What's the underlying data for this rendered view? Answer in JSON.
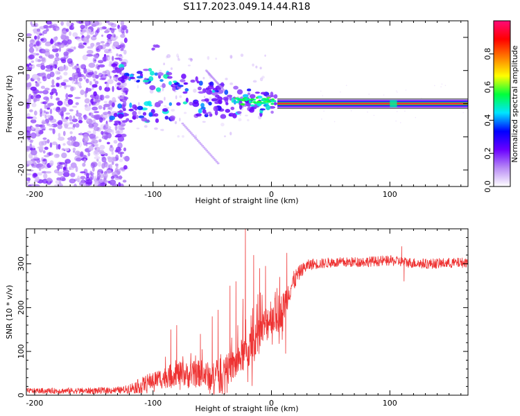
{
  "title": "S117.2023.049.14.44.R18",
  "chart_data": [
    {
      "type": "heatmap",
      "name": "spectrogram",
      "xlabel": "Height of straight line (km)",
      "ylabel": "Frequency (Hz)",
      "xlim": [
        -207,
        166
      ],
      "ylim": [
        -25,
        25
      ],
      "xticks": [
        "-200",
        "-100",
        "0",
        "100"
      ],
      "xtick_values": [
        -200,
        -100,
        0,
        100
      ],
      "yticks": [
        "20",
        "10",
        "0",
        "-10",
        "-20"
      ],
      "ytick_values": [
        20,
        10,
        0,
        -10,
        -20
      ],
      "band": {
        "x_start": 5,
        "x_end": 166,
        "freq_center": 0,
        "freq_halfwidth": 1.2
      },
      "colorbar": {
        "label": "Normalized spectral amplitude",
        "range": [
          0,
          1
        ],
        "ticks": [
          "0.0",
          "0.2",
          "0.4",
          "0.6",
          "0.8"
        ],
        "tick_values": [
          0.0,
          0.2,
          0.4,
          0.6,
          0.8
        ],
        "colors": [
          "#ffffff",
          "#b98cf5",
          "#6a00ff",
          "#0000ff",
          "#00e5ff",
          "#00ff3c",
          "#ffff00",
          "#ff7f00",
          "#ff0000",
          "#ff0a78"
        ]
      }
    },
    {
      "type": "line",
      "name": "snr",
      "xlabel": "Height of straight line (km)",
      "ylabel": "SNR (10 * v/v)",
      "xlim": [
        -207,
        166
      ],
      "ylim": [
        0,
        380
      ],
      "xticks": [
        "-200",
        "-100",
        "0",
        "100"
      ],
      "xtick_values": [
        -200,
        -100,
        0,
        100
      ],
      "yticks": [
        "0",
        "100",
        "200",
        "300"
      ],
      "ytick_values": [
        0,
        100,
        200,
        300
      ],
      "color": "#ee3333",
      "profile_x": [
        -207,
        -150,
        -125,
        -110,
        -100,
        -90,
        -80,
        -70,
        -60,
        -50,
        -40,
        -30,
        -25,
        -20,
        -15,
        -10,
        -5,
        0,
        5,
        10,
        15,
        20,
        25,
        30,
        35,
        40,
        50,
        60,
        80,
        100,
        110,
        115,
        130,
        166
      ],
      "profile_y": [
        10,
        10,
        12,
        22,
        35,
        40,
        50,
        45,
        50,
        40,
        55,
        70,
        90,
        100,
        120,
        140,
        160,
        185,
        180,
        200,
        240,
        265,
        285,
        295,
        300,
        300,
        303,
        303,
        305,
        307,
        305,
        303,
        300,
        303
      ],
      "noise_x": [
        -207,
        -125,
        -110,
        -90,
        -70,
        -40,
        -25,
        -15,
        0,
        12,
        25,
        40,
        166
      ],
      "noise_amp": [
        6,
        8,
        18,
        25,
        30,
        35,
        40,
        45,
        45,
        35,
        15,
        12,
        12
      ],
      "spikes": [
        {
          "x": -22,
          "y": 380
        },
        {
          "x": -20,
          "y": 30
        },
        {
          "x": -24,
          "y": 220
        },
        {
          "x": -15,
          "y": 320
        },
        {
          "x": -10,
          "y": 290
        },
        {
          "x": -30,
          "y": 260
        },
        {
          "x": -35,
          "y": 250
        },
        {
          "x": -50,
          "y": 180
        },
        {
          "x": -80,
          "y": 160
        },
        {
          "x": -85,
          "y": 150
        },
        {
          "x": 13,
          "y": 325
        },
        {
          "x": 12,
          "y": 95
        },
        {
          "x": -5,
          "y": 295
        },
        {
          "x": 110,
          "y": 340
        },
        {
          "x": 112,
          "y": 260
        },
        {
          "x": -60,
          "y": 140
        },
        {
          "x": -45,
          "y": 195
        },
        {
          "x": 7,
          "y": 270
        }
      ]
    }
  ]
}
